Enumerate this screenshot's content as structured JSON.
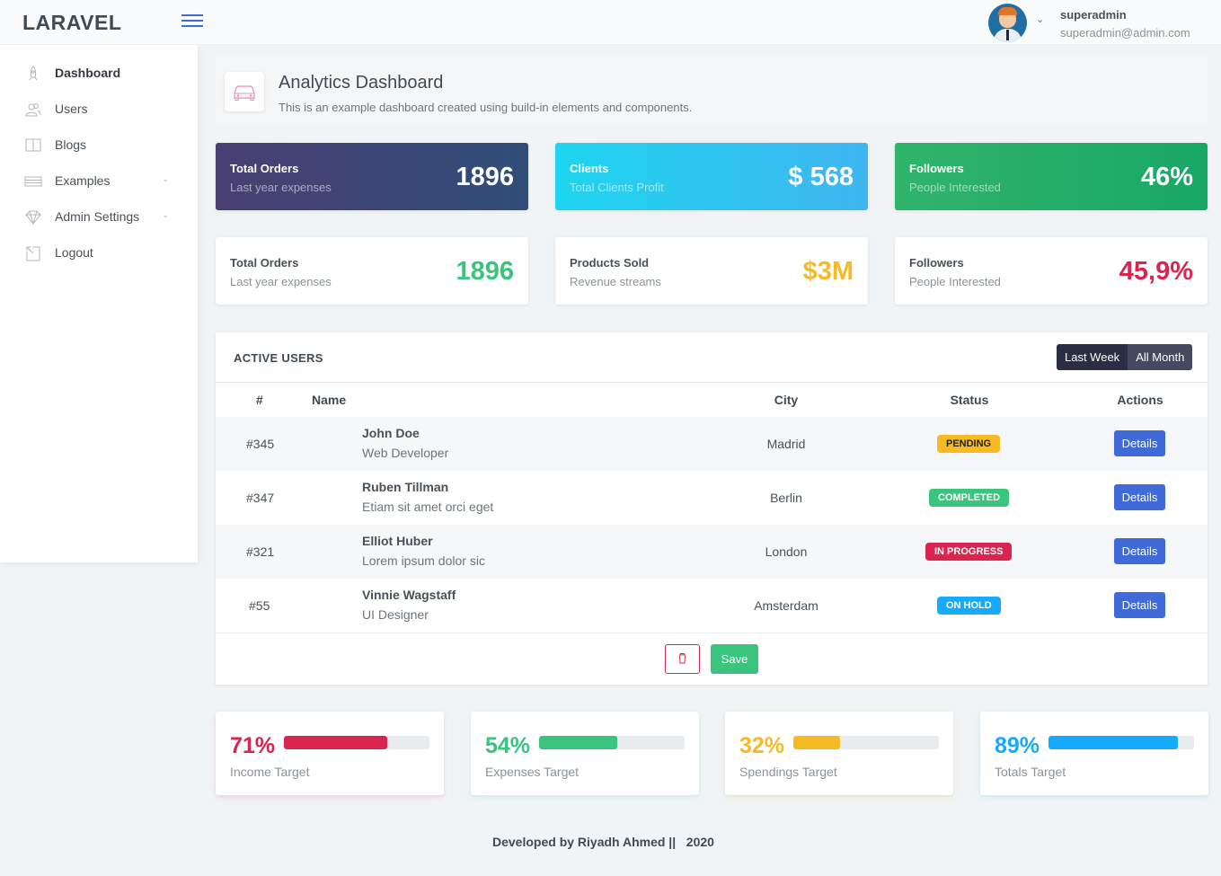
{
  "header": {
    "logo": "LARAVEL",
    "user_name": "superadmin",
    "user_email": "superadmin@admin.com"
  },
  "sidebar": {
    "items": [
      {
        "label": "Dashboard",
        "icon": "rocket-icon",
        "active": true
      },
      {
        "label": "Users",
        "icon": "users-icon"
      },
      {
        "label": "Blogs",
        "icon": "book-icon"
      },
      {
        "label": "Examples",
        "icon": "list-icon",
        "has_submenu": true
      },
      {
        "label": "Admin Settings",
        "icon": "diamond-icon",
        "has_submenu": true
      },
      {
        "label": "Logout",
        "icon": "logout-icon"
      }
    ]
  },
  "page": {
    "title": "Analytics Dashboard",
    "subtitle": "This is an example dashboard created using build-in elements and components."
  },
  "stats_top": [
    {
      "heading": "Total Orders",
      "sub": "Last year expenses",
      "value": "1896"
    },
    {
      "heading": "Clients",
      "sub": "Total Clients Profit",
      "value": "$ 568"
    },
    {
      "heading": "Followers",
      "sub": "People Interested",
      "value": "46%"
    }
  ],
  "stats_bottom": [
    {
      "heading": "Total Orders",
      "sub": "Last year expenses",
      "value": "1896",
      "color": "#3ac47d"
    },
    {
      "heading": "Products Sold",
      "sub": "Revenue streams",
      "value": "$3M",
      "color": "#f7b924"
    },
    {
      "heading": "Followers",
      "sub": "People Interested",
      "value": "45,9%",
      "color": "#d92550"
    }
  ],
  "active_users": {
    "title": "ACTIVE USERS",
    "filter_last_week": "Last Week",
    "filter_all_month": "All Month",
    "columns": [
      "#",
      "Name",
      "City",
      "Status",
      "Actions"
    ],
    "rows": [
      {
        "id": "#345",
        "name": "John Doe",
        "role": "Web Developer",
        "city": "Madrid",
        "status": "PENDING",
        "action": "Details"
      },
      {
        "id": "#347",
        "name": "Ruben Tillman",
        "role": "Etiam sit amet orci eget",
        "city": "Berlin",
        "status": "COMPLETED",
        "action": "Details"
      },
      {
        "id": "#321",
        "name": "Elliot Huber",
        "role": "Lorem ipsum dolor sic",
        "city": "London",
        "status": "IN PROGRESS",
        "action": "Details"
      },
      {
        "id": "#55",
        "name": "Vinnie Wagstaff",
        "role": "UI Designer",
        "city": "Amsterdam",
        "status": "ON HOLD",
        "action": "Details"
      }
    ],
    "save_label": "Save"
  },
  "targets": [
    {
      "value": "71%",
      "percent": 71,
      "label": "Income Target",
      "color": "#d92550"
    },
    {
      "value": "54%",
      "percent": 54,
      "label": "Expenses Target",
      "color": "#3ac47d"
    },
    {
      "value": "32%",
      "percent": 32,
      "label": "Spendings Target",
      "color": "#f7b924"
    },
    {
      "value": "89%",
      "percent": 89,
      "label": "Totals Target",
      "color": "#16aaff"
    }
  ],
  "footer": {
    "text": "Developed by Riyadh Ahmed ||   2020"
  }
}
